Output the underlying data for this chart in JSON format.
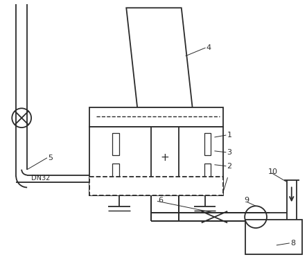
{
  "bg_color": "#ffffff",
  "line_color": "#2a2a2a",
  "figsize": [
    4.43,
    3.94
  ],
  "dpi": 100
}
